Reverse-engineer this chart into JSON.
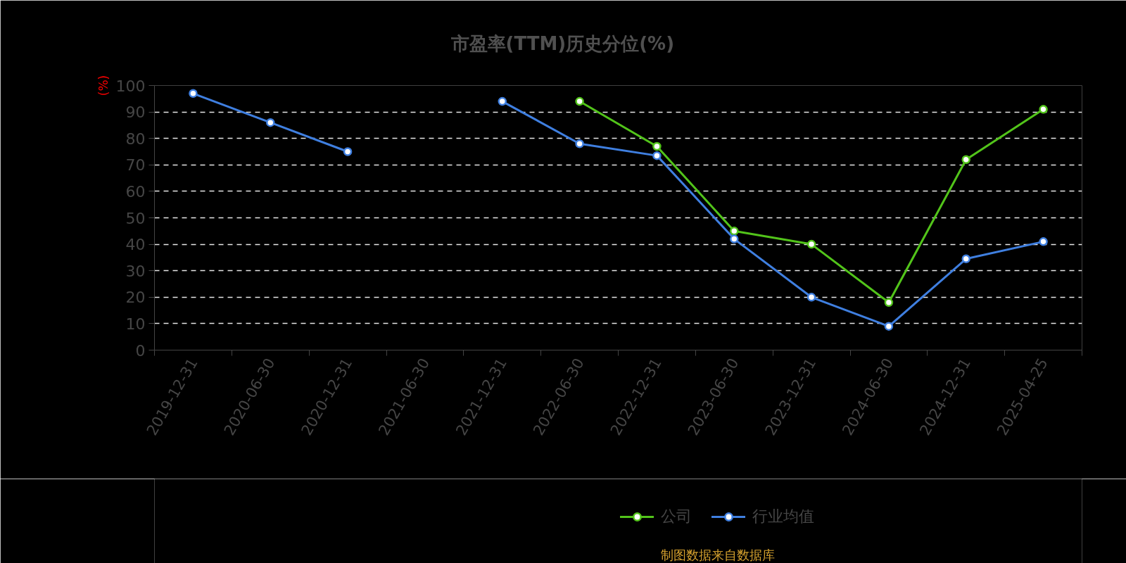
{
  "chart_data": {
    "type": "line",
    "title": "市盈率(TTM)历史分位(%)",
    "ylabel": "(%)",
    "categories": [
      "2019-12-31",
      "2020-06-30",
      "2020-12-31",
      "2021-06-30",
      "2021-12-31",
      "2022-06-30",
      "2022-12-31",
      "2023-06-30",
      "2023-12-31",
      "2024-06-30",
      "2024-12-31",
      "2025-04-25"
    ],
    "series": [
      {
        "name": "公司",
        "color": "#52c41a",
        "values": [
          null,
          null,
          null,
          null,
          null,
          94,
          77,
          45,
          40,
          18,
          72,
          91
        ]
      },
      {
        "name": "行业均值",
        "color": "#3f7fe0",
        "values": [
          97,
          86,
          75,
          null,
          94,
          78,
          73.5,
          42,
          20,
          9,
          34.5,
          41
        ]
      }
    ],
    "ylim": [
      0,
      100
    ],
    "yticks": [
      0,
      10,
      20,
      30,
      40,
      50,
      60,
      70,
      80,
      90,
      100
    ],
    "grid": "y",
    "legend": "bottom",
    "marker": "circle",
    "line_style": "solid",
    "annotations": [
      "制图数据来自数据库"
    ]
  }
}
